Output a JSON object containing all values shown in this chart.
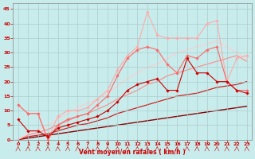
{
  "x": [
    0,
    1,
    2,
    3,
    4,
    5,
    6,
    7,
    8,
    9,
    10,
    11,
    12,
    13,
    14,
    15,
    16,
    17,
    18,
    19,
    20,
    21,
    22,
    23
  ],
  "series": [
    {
      "y": [
        7,
        3,
        3,
        1,
        4,
        5,
        6,
        7,
        8,
        10,
        13,
        17,
        19,
        20,
        21,
        17,
        17,
        28,
        23,
        23,
        20,
        20,
        17,
        16
      ],
      "color": "#cc0000",
      "marker": "D",
      "markersize": 1.8,
      "linewidth": 0.8,
      "zorder": 5
    },
    {
      "y": [
        12,
        9,
        9,
        0,
        5,
        7,
        8,
        9,
        12,
        15,
        22,
        28,
        31,
        32,
        31,
        26,
        23,
        29,
        28,
        31,
        32,
        20,
        17,
        17
      ],
      "color": "#ff6666",
      "marker": "D",
      "markersize": 1.8,
      "linewidth": 0.8,
      "zorder": 3
    },
    {
      "y": [
        12,
        9,
        9,
        0,
        8,
        10,
        10,
        11,
        14,
        17,
        24,
        29,
        32,
        44,
        36,
        35,
        35,
        35,
        35,
        40,
        41,
        20,
        28,
        29
      ],
      "color": "#ffaaaa",
      "marker": "D",
      "markersize": 1.8,
      "linewidth": 0.8,
      "zorder": 2
    },
    {
      "y": [
        0,
        0.5,
        1,
        1.5,
        2,
        2.5,
        3,
        3.5,
        4,
        4.5,
        5,
        5.5,
        6,
        6.5,
        7,
        7.5,
        8,
        8.5,
        9,
        9.5,
        10,
        10.5,
        11,
        11.5
      ],
      "color": "#880000",
      "marker": null,
      "linewidth": 1.0,
      "zorder": 1
    },
    {
      "y": [
        0,
        1,
        1.5,
        2,
        3,
        4,
        5,
        5.5,
        6.5,
        7.5,
        9,
        10,
        11,
        12,
        13,
        14,
        15,
        15.5,
        16,
        17,
        18,
        18.5,
        19,
        20
      ],
      "color": "#cc2222",
      "marker": null,
      "linewidth": 0.9,
      "zorder": 1
    },
    {
      "y": [
        0,
        1.5,
        2.5,
        3.5,
        5,
        6.5,
        8,
        9,
        10.5,
        12,
        14,
        15.5,
        17,
        19,
        20,
        22,
        23,
        24,
        25,
        26,
        27,
        28,
        29,
        27
      ],
      "color": "#ff8888",
      "marker": null,
      "linewidth": 0.8,
      "zorder": 1
    },
    {
      "y": [
        0,
        2,
        3.5,
        5,
        7,
        9,
        11,
        12.5,
        14,
        16,
        18.5,
        21,
        23,
        25,
        26,
        28,
        30,
        31,
        32,
        33,
        34,
        32,
        30,
        28
      ],
      "color": "#ffcccc",
      "marker": null,
      "linewidth": 0.8,
      "zorder": 1
    }
  ],
  "xlabel": "Vent moyen/en rafales ( km/h )",
  "ylim": [
    0,
    47
  ],
  "xlim": [
    -0.5,
    23.5
  ],
  "yticks": [
    0,
    5,
    10,
    15,
    20,
    25,
    30,
    35,
    40,
    45
  ],
  "xticks": [
    0,
    1,
    2,
    3,
    4,
    5,
    6,
    7,
    8,
    9,
    10,
    11,
    12,
    13,
    14,
    15,
    16,
    17,
    18,
    19,
    20,
    21,
    22,
    23
  ],
  "bg_color": "#c8ecec",
  "grid_color": "#aacccc",
  "xlabel_color": "#cc0000",
  "tick_color": "#cc0000",
  "spine_color": "#888888"
}
